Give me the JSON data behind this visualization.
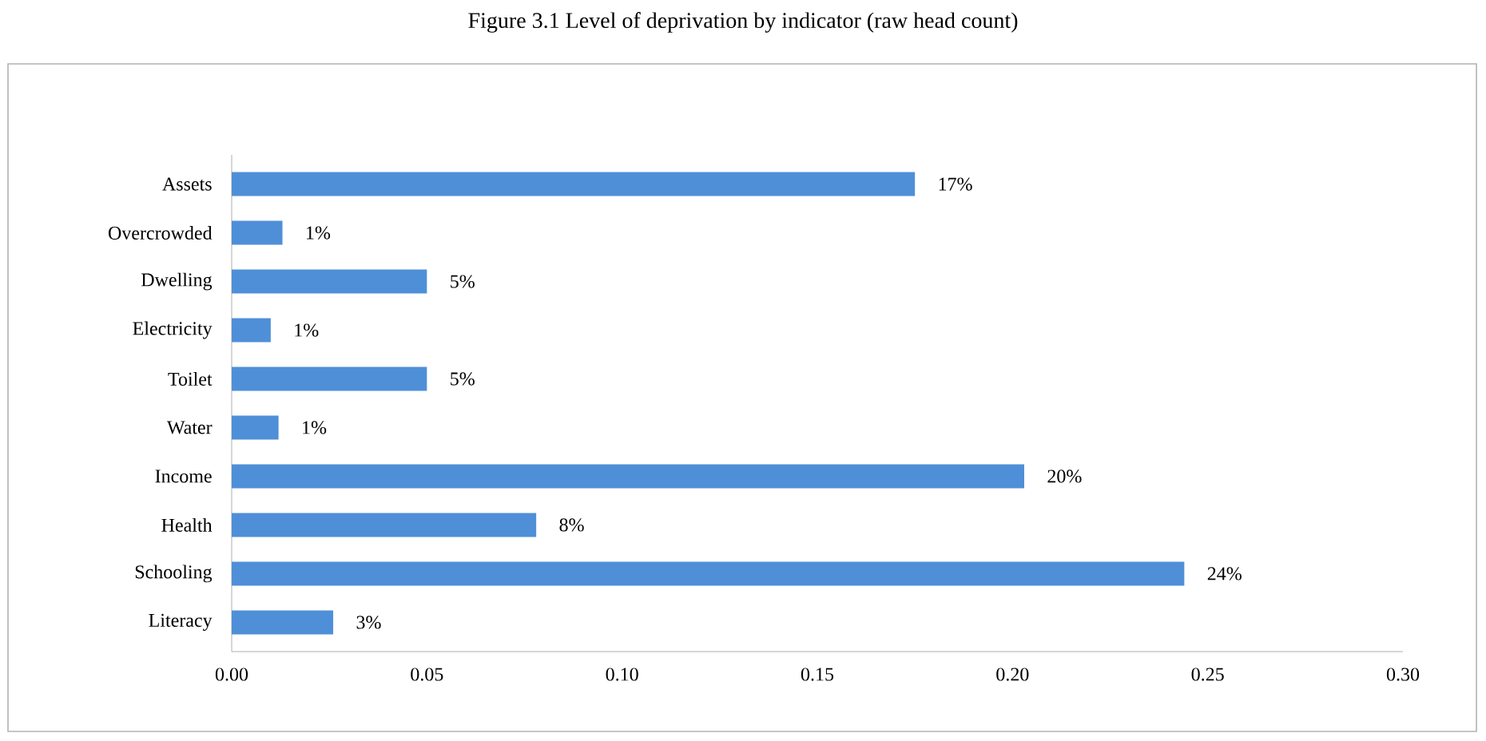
{
  "chart_data": {
    "type": "bar",
    "orientation": "horizontal",
    "title": "Figure 3.1 Level of deprivation by indicator (raw head count)",
    "categories": [
      "Assets",
      "Overcrowded",
      "Dwelling",
      "Electricity",
      "Toilet",
      "Water",
      "Income",
      "Health",
      "Schooling",
      "Literacy"
    ],
    "values": [
      0.175,
      0.013,
      0.05,
      0.01,
      0.05,
      0.012,
      0.203,
      0.078,
      0.244,
      0.026
    ],
    "value_labels": [
      "17%",
      "1%",
      "5%",
      "1%",
      "5%",
      "1%",
      "20%",
      "8%",
      "24%",
      "3%"
    ],
    "color": "#4f8fd8",
    "xlim": [
      0,
      0.3
    ],
    "xticks": [
      {
        "value": 0,
        "label": "0.00"
      },
      {
        "value": 0.05,
        "label": "0.05"
      },
      {
        "value": 0.1,
        "label": "0.10"
      },
      {
        "value": 0.15,
        "label": "0.15"
      },
      {
        "value": 0.2,
        "label": "0.20"
      },
      {
        "value": 0.25,
        "label": "0.25"
      },
      {
        "value": 0.3,
        "label": "0.30"
      }
    ],
    "tick_labels": true
  }
}
